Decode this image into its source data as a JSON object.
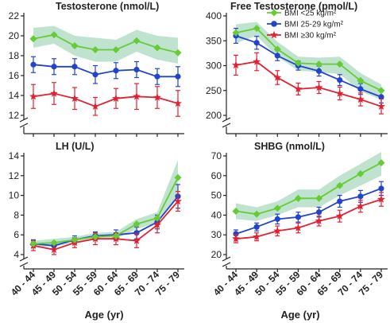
{
  "colors": {
    "bmi_lt25": "#66cc33",
    "bmi_25_29": "#2244cc",
    "bmi_ge30": "#e02233",
    "band": "#bfe3cf",
    "axis": "#222222"
  },
  "chart_data": [
    {
      "type": "line",
      "title": "Testosterone (nmol/L)",
      "xlabel": "",
      "ylabel": "",
      "categories": [
        "40 - 44",
        "45 - 49",
        "50 - 54",
        "55 - 59",
        "60 - 64",
        "65 - 69",
        "70 - 74",
        "75 - 79"
      ],
      "ylim": [
        12,
        22
      ],
      "yticks": [
        12,
        14,
        16,
        18,
        20,
        22
      ],
      "axis_break": true,
      "grid": false,
      "band": {
        "lower": [
          18.8,
          19.2,
          18.0,
          17.4,
          17.4,
          18.4,
          17.6,
          17.2
        ],
        "upper": [
          20.8,
          21.0,
          20.0,
          19.8,
          19.6,
          20.6,
          20.0,
          19.8
        ]
      },
      "series": [
        {
          "name": "BMI <25 kg/m²",
          "values": [
            19.7,
            20.1,
            19.0,
            18.6,
            18.6,
            19.5,
            18.8,
            18.3
          ],
          "err": [
            0,
            0,
            0,
            0,
            0,
            0,
            0,
            0
          ]
        },
        {
          "name": "BMI 25-29 kg/m²",
          "values": [
            17.1,
            16.9,
            16.9,
            16.1,
            16.5,
            16.6,
            15.9,
            15.9
          ],
          "err": [
            0.8,
            0.8,
            0.8,
            0.9,
            0.8,
            0.8,
            0.8,
            1.0
          ]
        },
        {
          "name": "BMI ≥30 kg/m²",
          "values": [
            13.9,
            14.2,
            13.7,
            12.9,
            13.7,
            13.9,
            13.8,
            13.2
          ],
          "err": [
            1.2,
            1.1,
            1.1,
            0.9,
            1.0,
            1.3,
            1.1,
            1.3
          ]
        }
      ]
    },
    {
      "type": "line",
      "title": "Free Testosterone (pmol/L)",
      "xlabel": "",
      "ylabel": "",
      "categories": [
        "40 - 44",
        "45 - 49",
        "50 - 54",
        "55 - 59",
        "60 - 64",
        "65 - 69",
        "70 - 74",
        "75 - 79"
      ],
      "ylim": [
        200,
        400
      ],
      "yticks": [
        200,
        250,
        300,
        350,
        400
      ],
      "axis_break": true,
      "grid": false,
      "legend": "top-right",
      "band": {
        "lower": [
          345,
          360,
          318,
          290,
          287,
          283,
          248,
          232
        ],
        "upper": [
          383,
          388,
          348,
          318,
          316,
          318,
          285,
          262
        ]
      },
      "series": [
        {
          "name": "BMI <25 kg/m²",
          "values": [
            366,
            375,
            333,
            305,
            303,
            303,
            270,
            250
          ],
          "err": [
            0,
            0,
            0,
            0,
            0,
            0,
            0,
            0
          ]
        },
        {
          "name": "BMI 25-29 kg/m²",
          "values": [
            360,
            346,
            320,
            300,
            289,
            271,
            253,
            237
          ],
          "err": [
            15,
            13,
            10,
            9,
            10,
            11,
            11,
            12
          ]
        },
        {
          "name": "BMI ≥30 kg/m²",
          "values": [
            301,
            308,
            276,
            253,
            256,
            244,
            232,
            218
          ],
          "err": [
            20,
            18,
            14,
            12,
            12,
            13,
            13,
            15
          ]
        }
      ]
    },
    {
      "type": "line",
      "title": "LH (U/L)",
      "xlabel": "Age (yr)",
      "ylabel": "",
      "categories": [
        "40 - 44",
        "45 - 49",
        "50 - 54",
        "55 - 59",
        "60 - 64",
        "65 - 69",
        "70 - 74",
        "75 - 79"
      ],
      "ylim": [
        4,
        14
      ],
      "yticks": [
        4,
        6,
        8,
        10,
        12,
        14
      ],
      "axis_break": true,
      "grid": false,
      "band": {
        "lower": [
          4.8,
          4.8,
          5.2,
          5.5,
          5.6,
          6.6,
          7.2,
          10.0
        ],
        "upper": [
          5.4,
          5.6,
          5.8,
          6.2,
          6.3,
          7.6,
          8.3,
          13.6
        ]
      },
      "series": [
        {
          "name": "BMI <25 kg/m²",
          "values": [
            5.1,
            5.2,
            5.5,
            5.8,
            5.9,
            7.1,
            7.7,
            11.8
          ],
          "err": [
            0,
            0,
            0,
            0,
            0,
            0,
            0,
            0
          ]
        },
        {
          "name": "BMI 25-29 kg/m²",
          "values": [
            5.1,
            4.9,
            5.5,
            5.9,
            6.0,
            6.2,
            7.3,
            9.9
          ],
          "err": [
            0.4,
            0.4,
            0.4,
            0.4,
            0.5,
            0.6,
            0.7,
            1.2
          ]
        },
        {
          "name": "BMI ≥30 kg/m²",
          "values": [
            4.9,
            4.5,
            5.2,
            5.6,
            5.6,
            5.4,
            7.0,
            9.4
          ],
          "err": [
            0.5,
            0.5,
            0.5,
            0.6,
            0.6,
            0.7,
            0.8,
            1.0
          ]
        }
      ]
    },
    {
      "type": "line",
      "title": "SHBG (nmol/L)",
      "xlabel": "Age (yr)",
      "ylabel": "",
      "categories": [
        "40 - 44",
        "45 - 49",
        "50 - 54",
        "55 - 59",
        "60 - 64",
        "65 - 69",
        "70 - 74",
        "75 - 79"
      ],
      "ylim": [
        20,
        70
      ],
      "yticks": [
        20,
        30,
        40,
        50,
        60,
        70
      ],
      "axis_break": true,
      "grid": false,
      "band": {
        "lower": [
          38,
          37,
          40,
          44,
          44,
          50,
          55,
          60
        ],
        "upper": [
          46,
          44,
          47,
          53,
          53,
          60,
          66,
          72
        ]
      },
      "series": [
        {
          "name": "BMI <25 kg/m²",
          "values": [
            42,
            40.5,
            43.5,
            48.5,
            48.5,
            55,
            61,
            66.5
          ],
          "err": [
            0,
            0,
            0,
            0,
            0,
            0,
            0,
            0
          ]
        },
        {
          "name": "BMI 25-29 kg/m²",
          "values": [
            30.5,
            34,
            38,
            39,
            41.5,
            47,
            49.5,
            53.5
          ],
          "err": [
            2,
            2,
            2.5,
            2.5,
            2.5,
            3,
            3,
            3.5
          ]
        },
        {
          "name": "BMI ≥30 kg/m²",
          "values": [
            28,
            29,
            32,
            33.5,
            37,
            39.5,
            44.5,
            48
          ],
          "err": [
            2,
            2,
            2.5,
            2.5,
            2.5,
            3,
            3,
            3.5
          ]
        }
      ]
    }
  ]
}
